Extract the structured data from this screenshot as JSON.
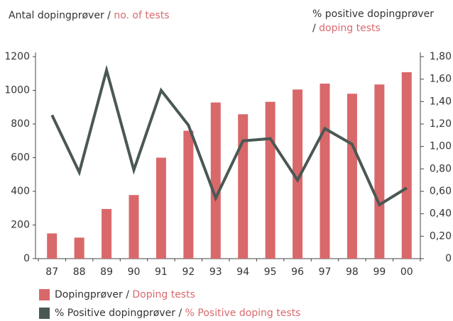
{
  "chart_data": {
    "type": "bar_line",
    "y_label": [
      "Antal dopingprøver / ",
      "no. of tests"
    ],
    "y2_label": [
      "% positive dopingprøver",
      "/ ",
      "doping tests"
    ],
    "categories": [
      "87",
      "88",
      "89",
      "90",
      "91",
      "92",
      "93",
      "94",
      "95",
      "96",
      "97",
      "98",
      "99",
      "00"
    ],
    "series": [
      {
        "name": [
          "Dopingprøver / ",
          "Doping tests"
        ],
        "type": "bar",
        "color": "#d9686b",
        "values": [
          150,
          125,
          295,
          378,
          600,
          760,
          928,
          858,
          932,
          1005,
          1040,
          980,
          1035,
          1108
        ]
      },
      {
        "name": [
          "% Positive dopingprøver / ",
          "% Positive doping tests"
        ],
        "type": "line",
        "color": "#4a5853",
        "axis": "y2",
        "values": [
          1.28,
          0.77,
          1.68,
          0.79,
          1.5,
          1.19,
          0.54,
          1.05,
          1.07,
          0.7,
          1.16,
          1.02,
          0.48,
          0.63
        ]
      }
    ],
    "ylim": [
      0,
      1200
    ],
    "yticks": [
      0,
      200,
      400,
      600,
      800,
      1000,
      1200
    ],
    "y2lim": [
      0,
      1.8
    ],
    "y2ticks": [
      0,
      {
        "value": 0.2,
        "label": "0,20"
      },
      {
        "value": 0.4,
        "label": "0,40"
      },
      {
        "value": 0.6,
        "label": "0,60"
      },
      {
        "value": 0.8,
        "label": "0,80"
      },
      {
        "value": 1.0,
        "label": "1,00"
      },
      {
        "value": 1.2,
        "label": "1,20"
      },
      {
        "value": 1.4,
        "label": "1,40"
      },
      {
        "value": 1.6,
        "label": "1,60"
      },
      {
        "value": 1.8,
        "label": "1,80"
      }
    ]
  }
}
